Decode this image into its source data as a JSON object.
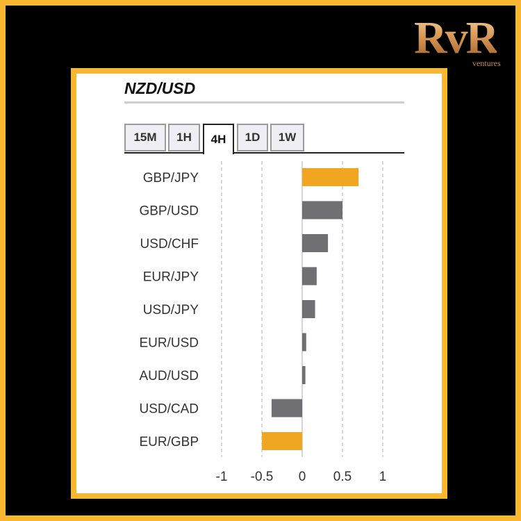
{
  "logo": {
    "mark": "RvR",
    "sub": "ventures"
  },
  "title": "NZD/USD",
  "tabs": [
    {
      "label": "15M",
      "active": false
    },
    {
      "label": "1H",
      "active": false
    },
    {
      "label": "4H",
      "active": true
    },
    {
      "label": "1D",
      "active": false
    },
    {
      "label": "1W",
      "active": false
    }
  ],
  "colors": {
    "frame": "#f7b733",
    "highlight": "#f0a620",
    "neutral": "#707074"
  },
  "chart_data": {
    "type": "bar",
    "orientation": "horizontal",
    "categories": [
      "GBP/JPY",
      "GBP/USD",
      "USD/CHF",
      "EUR/JPY",
      "USD/JPY",
      "EUR/USD",
      "AUD/USD",
      "USD/CAD",
      "EUR/GBP"
    ],
    "values": [
      0.7,
      0.5,
      0.32,
      0.18,
      0.16,
      0.05,
      0.04,
      -0.38,
      -0.5
    ],
    "highlight": [
      true,
      false,
      false,
      false,
      false,
      false,
      false,
      false,
      true
    ],
    "xlim": [
      -1.1,
      1.1
    ],
    "xticks": [
      -1,
      -0.5,
      0,
      0.5,
      1
    ],
    "xtick_labels": [
      "-1",
      "-0.5",
      "0",
      "0.5",
      "1"
    ],
    "grid": "vertical-dashed",
    "legend": "none"
  }
}
